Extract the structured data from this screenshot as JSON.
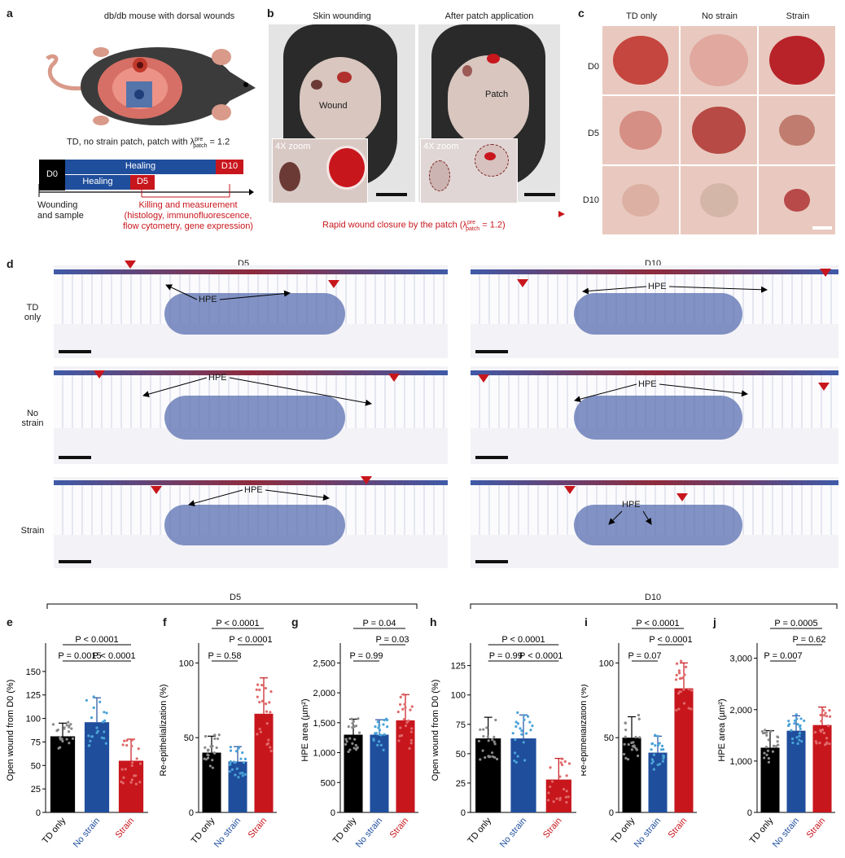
{
  "figure": {
    "panels": {
      "a": "a",
      "b": "b",
      "c": "c",
      "d": "d",
      "e": "e",
      "f": "f",
      "g": "g",
      "h": "h",
      "i": "i",
      "j": "j"
    }
  },
  "panel_a": {
    "title": "db/db mouse with dorsal wounds",
    "conditions": "TD, no strain patch, patch with λ",
    "lambda_sup": "pre",
    "lambda_sub": "patch",
    "lambda_value": " = 1.2",
    "timeline": {
      "d0": "D0",
      "healing_long": "Healing",
      "healing_short": "Healing",
      "d5": "D5",
      "d10": "D10",
      "wounding_line1": "Wounding",
      "wounding_line2": "and sample",
      "kill_line1": "Killing and measurement",
      "kill_line2": "(histology, immunofluorescence,",
      "kill_line3": "flow cytometry, gene expression)"
    },
    "colors": {
      "black": "#000000",
      "blue": "#1f4e9c",
      "red": "#c8161d"
    }
  },
  "panel_b": {
    "left_title": "Skin wounding",
    "right_title": "After patch application",
    "wound_label": "Wound",
    "patch_label": "Patch",
    "zoom_left": "4X zoom",
    "zoom_right": "4X zoom",
    "caption_prefix": "Rapid wound closure by the patch (λ",
    "caption_sup": "pre",
    "caption_sub": "patch",
    "caption_suffix": " = 1.2)"
  },
  "panel_c": {
    "cols": [
      "TD only",
      "No strain",
      "Strain"
    ],
    "rows": [
      "D0",
      "D5",
      "D10"
    ]
  },
  "panel_d": {
    "col_d5": "D5",
    "col_d10": "D10",
    "rows": [
      "TD\nonly",
      "No\nstrain",
      "Strain"
    ],
    "hpe": "HPE"
  },
  "group_labels": {
    "d5": "D5",
    "d10": "D10"
  },
  "chart_data": [
    {
      "id": "e",
      "type": "bar",
      "categories": [
        "TD only",
        "No strain",
        "Strain"
      ],
      "values": [
        81,
        96,
        55
      ],
      "errors": [
        14,
        26,
        23
      ],
      "ylabel": "Open wound from D0 (%)",
      "ylim": [
        0,
        175
      ],
      "yticks": [
        0,
        25,
        50,
        75,
        100,
        125,
        150
      ],
      "ytick_labels": [
        "0",
        "25",
        "50",
        "75",
        "100",
        "125",
        "150"
      ],
      "pvalues": [
        {
          "label": "P = 0.0015",
          "from": 0,
          "to": 1,
          "level": 1
        },
        {
          "label": "P < 0.0001",
          "from": 1,
          "to": 2,
          "level": 1
        },
        {
          "label": "P < 0.0001",
          "from": 0,
          "to": 2,
          "level": 2
        }
      ]
    },
    {
      "id": "f",
      "type": "bar",
      "categories": [
        "TD only",
        "No strain",
        "Strain"
      ],
      "values": [
        40,
        34,
        66
      ],
      "errors": [
        11,
        10,
        24
      ],
      "ylabel": "Re-epithelialization (%)",
      "ylim": [
        0,
        110
      ],
      "yticks": [
        0,
        50,
        100
      ],
      "ytick_labels": [
        "0",
        "50",
        "100"
      ],
      "pvalues": [
        {
          "label": "P = 0.58",
          "from": 0,
          "to": 1,
          "level": 1
        },
        {
          "label": "P < 0.0001",
          "from": 1,
          "to": 2,
          "level": 2
        },
        {
          "label": "P < 0.0001",
          "from": 0,
          "to": 2,
          "level": 3
        }
      ]
    },
    {
      "id": "g",
      "type": "bar",
      "categories": [
        "TD only",
        "No strain",
        "Strain"
      ],
      "values": [
        1300,
        1300,
        1540
      ],
      "errors": [
        260,
        250,
        430
      ],
      "ylabel": "HPE area (µm²)",
      "ylim": [
        0,
        2750
      ],
      "yticks": [
        0,
        500,
        1000,
        1500,
        2000,
        2500
      ],
      "ytick_labels": [
        "0",
        "500",
        "1,000",
        "1,500",
        "2,000",
        "2,500"
      ],
      "pvalues": [
        {
          "label": "P = 0.99",
          "from": 0,
          "to": 1,
          "level": 1
        },
        {
          "label": "P = 0.03",
          "from": 1,
          "to": 2,
          "level": 2
        },
        {
          "label": "P = 0.04",
          "from": 0,
          "to": 2,
          "level": 3
        }
      ]
    },
    {
      "id": "h",
      "type": "bar",
      "categories": [
        "TD only",
        "No strain",
        "Strain"
      ],
      "values": [
        63,
        63,
        28
      ],
      "errors": [
        18,
        20,
        18
      ],
      "ylabel": "Open wound from D0 (%)",
      "ylim": [
        0,
        140
      ],
      "yticks": [
        0,
        25,
        50,
        75,
        100,
        125
      ],
      "ytick_labels": [
        "0",
        "25",
        "50",
        "75",
        "100",
        "125"
      ],
      "pvalues": [
        {
          "label": "P = 0.99",
          "from": 0,
          "to": 1,
          "level": 1
        },
        {
          "label": "P < 0.0001",
          "from": 1,
          "to": 2,
          "level": 1
        },
        {
          "label": "P < 0.0001",
          "from": 0,
          "to": 2,
          "level": 2
        }
      ]
    },
    {
      "id": "i",
      "type": "bar",
      "categories": [
        "TD only",
        "No strain",
        "Strain"
      ],
      "values": [
        50,
        40,
        83
      ],
      "errors": [
        14,
        11,
        17
      ],
      "ylabel": "Re-epithelialization (%)",
      "ylim": [
        0,
        110
      ],
      "yticks": [
        0,
        50,
        100
      ],
      "ytick_labels": [
        "0",
        "50",
        "100"
      ],
      "pvalues": [
        {
          "label": "P = 0.07",
          "from": 0,
          "to": 1,
          "level": 1
        },
        {
          "label": "P < 0.0001",
          "from": 1,
          "to": 2,
          "level": 2
        },
        {
          "label": "P < 0.0001",
          "from": 0,
          "to": 2,
          "level": 3
        }
      ]
    },
    {
      "id": "j",
      "type": "bar",
      "categories": [
        "TD only",
        "No strain",
        "Strain"
      ],
      "values": [
        1260,
        1590,
        1700
      ],
      "errors": [
        330,
        290,
        350
      ],
      "ylabel": "HPE area (µm²)",
      "ylim": [
        0,
        3200
      ],
      "yticks": [
        0,
        1000,
        2000,
        3000
      ],
      "ytick_labels": [
        "0",
        "1,000",
        "2,000",
        "3,000"
      ],
      "pvalues": [
        {
          "label": "P = 0.007",
          "from": 0,
          "to": 1,
          "level": 1
        },
        {
          "label": "P = 0.62",
          "from": 1,
          "to": 2,
          "level": 2
        },
        {
          "label": "P = 0.0005",
          "from": 0,
          "to": 2,
          "level": 3
        }
      ]
    }
  ],
  "bar_colors": [
    "#000000",
    "#1f4e9c",
    "#c8161d"
  ],
  "point_colors": [
    "#8a8a8a",
    "#4aa3d8",
    "#e06a6a"
  ]
}
